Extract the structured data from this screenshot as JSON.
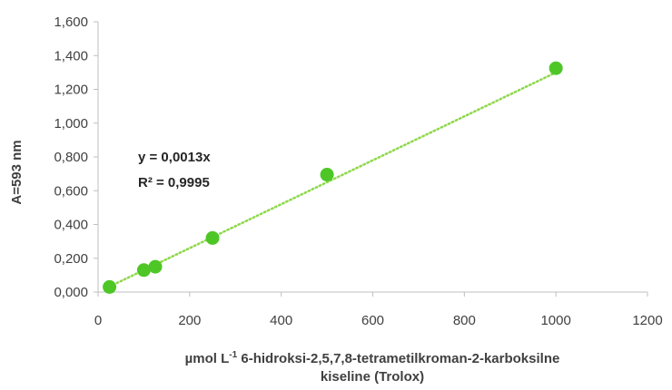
{
  "chart_data": {
    "type": "scatter",
    "x": [
      25,
      100,
      125,
      250,
      500,
      1000
    ],
    "y": [
      0.03,
      0.13,
      0.15,
      0.32,
      0.695,
      1.325
    ],
    "xlim": [
      0,
      1200
    ],
    "ylim": [
      0,
      1.6
    ],
    "x_ticks": [
      "0",
      "200",
      "400",
      "600",
      "800",
      "1000",
      "1200"
    ],
    "y_ticks": [
      "0,000",
      "0,200",
      "0,400",
      "0,600",
      "0,800",
      "1,000",
      "1,200",
      "1,400",
      "1,600"
    ],
    "ylabel": "A=593 nm",
    "xlabel_part1": "µmol L",
    "xlabel_sup": "-1",
    "xlabel_part2": " 6-hidroksi-2,5,7,8-tetrametilkroman-2-karboksilne",
    "xlabel_line2": "kiseline (Trolox)",
    "trendline": {
      "slope": 0.0013,
      "style": "dotted",
      "x_range": [
        25,
        1000
      ]
    },
    "annotations": {
      "equation": "y = 0,0013x",
      "r_squared": "R² = 0,9995"
    },
    "marker_color": "#4ec726",
    "trendline_color": "#8ed84a",
    "axis_color": "#bfbfbf",
    "grid": false
  }
}
